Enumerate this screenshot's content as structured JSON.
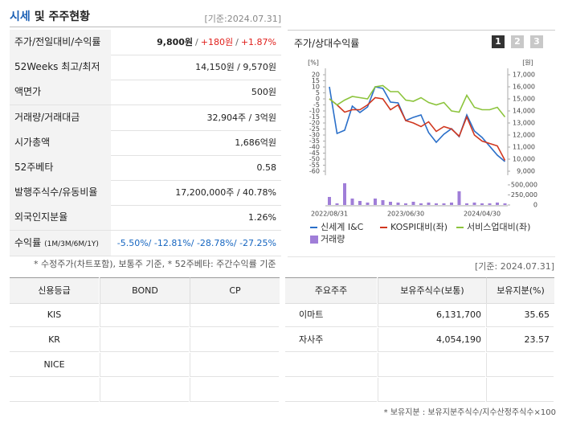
{
  "header": {
    "title_highlight": "시세",
    "title_rest": "및 주주현황",
    "date": "[기준:2024.07.31]"
  },
  "summary": {
    "separator": "/",
    "rows": [
      {
        "label": "주가/전일대비/수익률",
        "parts": [
          "9,800원",
          "+180원",
          "+1.87%"
        ]
      },
      {
        "label": "52Weeks 최고/최저",
        "value": "14,150원 / 9,570원"
      },
      {
        "label": "액면가",
        "value": "500원"
      },
      {
        "label": "거래량/거래대금",
        "value": "32,904주 / 3억원"
      },
      {
        "label": "시가총액",
        "value": "1,686억원"
      },
      {
        "label": "52주베타",
        "value": "0.58"
      },
      {
        "label": "발행주식수/유동비율",
        "value": "17,200,000주 / 40.78%"
      },
      {
        "label": "외국인지분율",
        "value": "1.26%"
      },
      {
        "label": "수익률",
        "sublabel": "(1M/3M/6M/1Y)",
        "value": "-5.50%/ -12.81%/ -28.78%/ -27.25%"
      }
    ],
    "note": "* 수정주가(차트포함), 보통주 기준, * 52주베타: 주간수익률 기준"
  },
  "chart_panel": {
    "title": "주가/상대수익률",
    "buttons": [
      "1",
      "2",
      "3"
    ]
  },
  "chart_data": {
    "type": "line",
    "categories": [
      "2022/08/31",
      null,
      null,
      null,
      null,
      null,
      null,
      null,
      null,
      null,
      "2023/06/30",
      null,
      null,
      null,
      null,
      null,
      null,
      null,
      null,
      null,
      "2024/04/30",
      null,
      null,
      null
    ],
    "ylabel": "[%]",
    "y2label": "[원]",
    "ylim": [
      -60,
      20
    ],
    "yticks": [
      20,
      15,
      10,
      5,
      0,
      -5,
      -10,
      -15,
      -20,
      -25,
      -30,
      -35,
      -40,
      -45,
      -50,
      -55,
      -60
    ],
    "y2lim": [
      9000,
      17000
    ],
    "y2ticks": [
      {
        "value": 17000,
        "label": "17,000"
      },
      {
        "value": 16000,
        "label": "16,000"
      },
      {
        "value": 15000,
        "label": "15,000"
      },
      {
        "value": 14000,
        "label": "14,000"
      },
      {
        "value": 13000,
        "label": "13,000"
      },
      {
        "value": 12000,
        "label": "12,000"
      },
      {
        "value": 11000,
        "label": "11,000"
      },
      {
        "value": 10000,
        "label": "10,000"
      },
      {
        "value": 9000,
        "label": "9,000"
      }
    ],
    "y3lim": [
      0,
      560000
    ],
    "y3ticks": [
      {
        "value": 500000,
        "label": "500,000"
      },
      {
        "value": 250000,
        "label": "250,000"
      },
      0
    ],
    "series": [
      {
        "name": "신세계 I&C",
        "color": "#2a6fc9",
        "axis": "y2",
        "values": [
          16000,
          12130,
          12400,
          14400,
          13870,
          14330,
          16000,
          15870,
          14730,
          14670,
          13200,
          13470,
          13670,
          12200,
          11400,
          12070,
          12530,
          11870,
          13670,
          12330,
          11800,
          11070,
          10330,
          9800
        ]
      },
      {
        "name": "KOSPI대비(좌)",
        "color": "#d0371f",
        "values": [
          0,
          -5,
          -11,
          -9,
          -9,
          -5,
          1,
          0,
          -9,
          -5,
          -18,
          -20,
          -23,
          -19,
          -27,
          -23,
          -25,
          -31,
          -15,
          -30,
          -35,
          -37,
          -39,
          -51
        ]
      },
      {
        "name": "서비스업대비(좌)",
        "color": "#8cc43c",
        "values": [
          0,
          -5,
          -1,
          2,
          1,
          0,
          10,
          11,
          6,
          6,
          -1,
          -2,
          1,
          -3,
          -5,
          -3,
          -10,
          -11,
          3,
          -7,
          -9,
          -9,
          -7,
          -15
        ]
      },
      {
        "name": "거래량",
        "color": "#a07ed8",
        "axis": "y3",
        "type": "bar",
        "values": [
          200000,
          40000,
          540000,
          160000,
          100000,
          60000,
          160000,
          120000,
          80000,
          60000,
          40000,
          80000,
          40000,
          60000,
          40000,
          40000,
          60000,
          340000,
          40000,
          60000,
          40000,
          40000,
          60000,
          40000
        ]
      }
    ]
  },
  "credit": {
    "headers": [
      "신용등급",
      "BOND",
      "CP"
    ],
    "rows": [
      "KIS",
      "KR",
      "NICE"
    ]
  },
  "holders": {
    "date": "[기준: 2024.07.31]",
    "headers": [
      "주요주주",
      "보유주식수(보통)",
      "보유지분(%)"
    ],
    "rows": [
      [
        "이마트",
        "6,131,700",
        "35.65"
      ],
      [
        "자사주",
        "4,054,190",
        "23.57"
      ]
    ],
    "note": "* 보유지분 : 보유지분주식수/지수산정주식수×100"
  }
}
